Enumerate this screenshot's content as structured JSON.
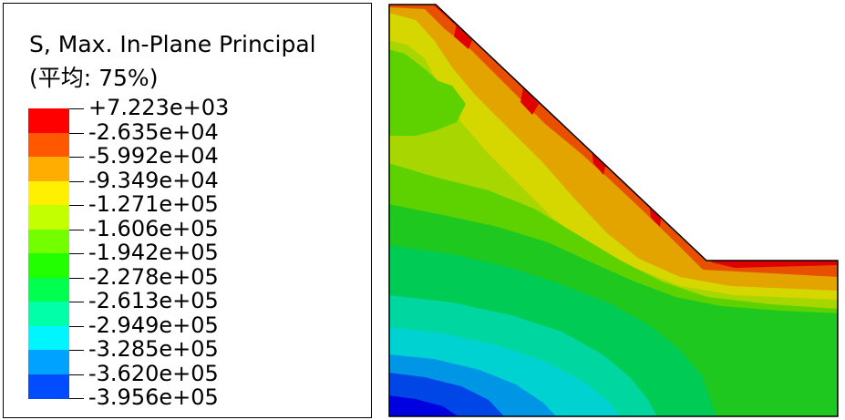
{
  "legend": {
    "title_line1": "S, Max. In-Plane Principal",
    "title_line2": "(平均: 75%)",
    "values": [
      "+7.223e+03",
      "-2.635e+04",
      "-5.992e+04",
      "-9.349e+04",
      "-1.271e+05",
      "-1.606e+05",
      "-1.942e+05",
      "-2.278e+05",
      "-2.613e+05",
      "-2.949e+05",
      "-3.285e+05",
      "-3.620e+05",
      "-3.956e+05"
    ],
    "colors": [
      "#ff0000",
      "#ff5800",
      "#ffad00",
      "#ffef00",
      "#c4ff00",
      "#73ff00",
      "#22ff00",
      "#00ff4f",
      "#00ffa8",
      "#00f5ff",
      "#00a2ff",
      "#004dff",
      "#0000ff"
    ]
  },
  "contour_colors": {
    "c0": "#e00000",
    "c1": "#e85000",
    "c2": "#e4a400",
    "c3": "#d6d600",
    "c4": "#a8d600",
    "c5": "#5ed200",
    "c6": "#1ec81e",
    "c7": "#00cc55",
    "c8": "#00d6a0",
    "c9": "#00d2d2",
    "c10": "#0096e6",
    "c11": "#0046e6",
    "c12": "#0000e0"
  }
}
